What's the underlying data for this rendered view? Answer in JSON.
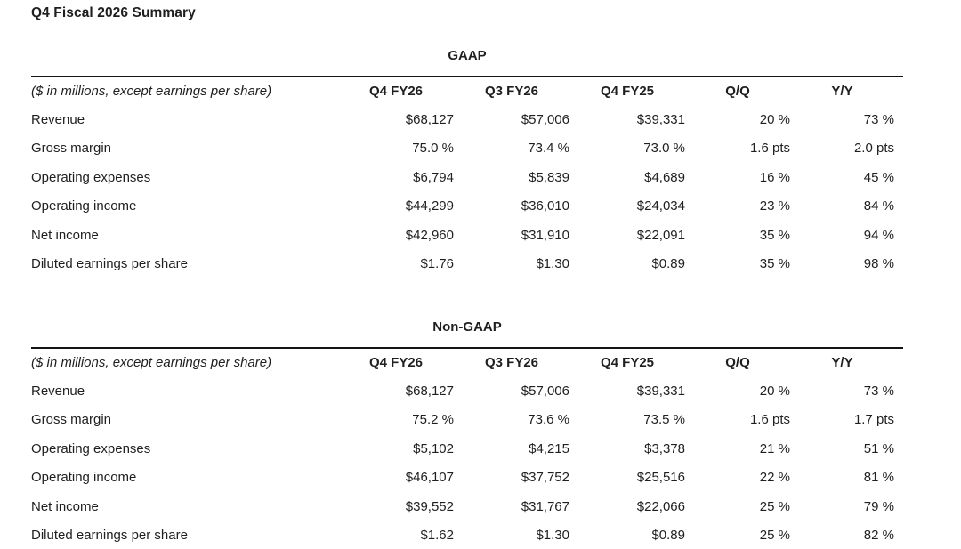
{
  "page": {
    "title": "Q4 Fiscal 2026 Summary"
  },
  "tables": [
    {
      "title": "GAAP",
      "note": "($ in millions, except earnings per share)",
      "columns": [
        "Q4 FY26",
        "Q3 FY26",
        "Q4 FY25",
        "Q/Q",
        "Y/Y"
      ],
      "rows": [
        {
          "label": "Revenue",
          "values": [
            "$68,127",
            "$57,006",
            "$39,331",
            "20 %",
            "73 %"
          ]
        },
        {
          "label": "Gross margin",
          "values": [
            "75.0 %",
            "73.4 %",
            "73.0 %",
            "1.6 pts",
            "2.0 pts"
          ]
        },
        {
          "label": "Operating expenses",
          "values": [
            "$6,794",
            "$5,839",
            "$4,689",
            "16 %",
            "45 %"
          ]
        },
        {
          "label": "Operating income",
          "values": [
            "$44,299",
            "$36,010",
            "$24,034",
            "23 %",
            "84 %"
          ]
        },
        {
          "label": "Net income",
          "values": [
            "$42,960",
            "$31,910",
            "$22,091",
            "35 %",
            "94 %"
          ]
        },
        {
          "label": "Diluted earnings per share",
          "values": [
            "$1.76",
            "$1.30",
            "$0.89",
            "35 %",
            "98 %"
          ]
        }
      ]
    },
    {
      "title": "Non-GAAP",
      "note": "($ in millions, except earnings per share)",
      "columns": [
        "Q4 FY26",
        "Q3 FY26",
        "Q4 FY25",
        "Q/Q",
        "Y/Y"
      ],
      "rows": [
        {
          "label": "Revenue",
          "values": [
            "$68,127",
            "$57,006",
            "$39,331",
            "20 %",
            "73 %"
          ]
        },
        {
          "label": "Gross margin",
          "values": [
            "75.2 %",
            "73.6 %",
            "73.5 %",
            "1.6 pts",
            "1.7 pts"
          ]
        },
        {
          "label": "Operating expenses",
          "values": [
            "$5,102",
            "$4,215",
            "$3,378",
            "21 %",
            "51 %"
          ]
        },
        {
          "label": "Operating income",
          "values": [
            "$46,107",
            "$37,752",
            "$25,516",
            "22 %",
            "81 %"
          ]
        },
        {
          "label": "Net income",
          "values": [
            "$39,552",
            "$31,767",
            "$22,066",
            "25 %",
            "79 %"
          ]
        },
        {
          "label": "Diluted earnings per share",
          "values": [
            "$1.62",
            "$1.30",
            "$0.89",
            "25 %",
            "82 %"
          ]
        }
      ]
    }
  ],
  "colors": {
    "text": "#1f1f1f",
    "rule": "#141414",
    "background": "#ffffff"
  }
}
